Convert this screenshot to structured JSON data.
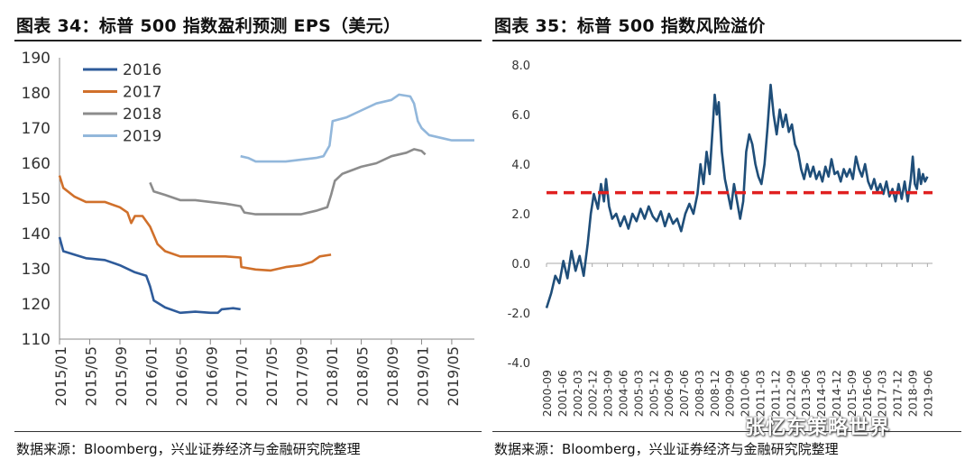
{
  "left": {
    "title": "图表 34：标普 500 指数盈利预测 EPS（美元）",
    "source": "数据来源：Bloomberg，兴业证券经济与金融研究院整理",
    "chart_data": {
      "type": "line",
      "title": "标普 500 指数盈利预测 EPS（美元）",
      "ylim": [
        110,
        190
      ],
      "yticks": [
        110,
        120,
        130,
        140,
        150,
        160,
        170,
        180,
        190
      ],
      "xlim": [
        0,
        55
      ],
      "xticks": [
        {
          "x": 0,
          "label": "2015/01"
        },
        {
          "x": 4,
          "label": "2015/05"
        },
        {
          "x": 8,
          "label": "2015/09"
        },
        {
          "x": 12,
          "label": "2016/01"
        },
        {
          "x": 16,
          "label": "2016/05"
        },
        {
          "x": 20,
          "label": "2016/09"
        },
        {
          "x": 24,
          "label": "2017/01"
        },
        {
          "x": 28,
          "label": "2017/05"
        },
        {
          "x": 32,
          "label": "2017/09"
        },
        {
          "x": 36,
          "label": "2018/01"
        },
        {
          "x": 40,
          "label": "2018/05"
        },
        {
          "x": 44,
          "label": "2018/09"
        },
        {
          "x": 48,
          "label": "2019/01"
        },
        {
          "x": 52,
          "label": "2019/05"
        }
      ],
      "series": [
        {
          "name": "2016",
          "color": "#2E5B9A",
          "points": [
            [
              0,
              139
            ],
            [
              0.5,
              135
            ],
            [
              2,
              134
            ],
            [
              3.5,
              133
            ],
            [
              6,
              132.5
            ],
            [
              8,
              131
            ],
            [
              10,
              129
            ],
            [
              11.5,
              128
            ],
            [
              12,
              125
            ],
            [
              12.5,
              121
            ],
            [
              14,
              119
            ],
            [
              16,
              117.5
            ],
            [
              18,
              117.8
            ],
            [
              20,
              117.5
            ],
            [
              21,
              117.5
            ],
            [
              21.5,
              118.5
            ],
            [
              23,
              118.8
            ],
            [
              24,
              118.5
            ]
          ]
        },
        {
          "name": "2017",
          "color": "#D0702B",
          "points": [
            [
              0,
              156.5
            ],
            [
              0.5,
              153
            ],
            [
              2,
              150.5
            ],
            [
              3.5,
              149
            ],
            [
              6,
              149
            ],
            [
              8,
              147.5
            ],
            [
              9,
              146
            ],
            [
              9.5,
              143
            ],
            [
              10,
              145
            ],
            [
              11,
              145
            ],
            [
              12,
              142
            ],
            [
              13,
              137
            ],
            [
              14,
              135
            ],
            [
              16,
              133.5
            ],
            [
              18,
              133.5
            ],
            [
              20,
              133.5
            ],
            [
              22,
              133.5
            ],
            [
              24,
              133.2
            ],
            [
              24.1,
              130.5
            ],
            [
              26,
              129.8
            ],
            [
              28,
              129.5
            ],
            [
              30,
              130.5
            ],
            [
              32,
              131
            ],
            [
              33.5,
              132
            ],
            [
              34.5,
              133.5
            ],
            [
              36,
              134
            ]
          ]
        },
        {
          "name": "2018",
          "color": "#8C8C8C",
          "points": [
            [
              12,
              154.5
            ],
            [
              12.5,
              152
            ],
            [
              14,
              151
            ],
            [
              16,
              149.5
            ],
            [
              18,
              149.5
            ],
            [
              20,
              149
            ],
            [
              22,
              148.5
            ],
            [
              24,
              147.8
            ],
            [
              24.5,
              146
            ],
            [
              26,
              145.5
            ],
            [
              28,
              145.5
            ],
            [
              30,
              145.5
            ],
            [
              32,
              145.5
            ],
            [
              34,
              146.5
            ],
            [
              35.5,
              147.5
            ],
            [
              36,
              151
            ],
            [
              36.5,
              155
            ],
            [
              37.5,
              157
            ],
            [
              40,
              159
            ],
            [
              42,
              160
            ],
            [
              44,
              162
            ],
            [
              46,
              163
            ],
            [
              47,
              164
            ],
            [
              48,
              163.5
            ],
            [
              48.5,
              162.5
            ]
          ]
        },
        {
          "name": "2019",
          "color": "#92B7DB",
          "points": [
            [
              24,
              162
            ],
            [
              25,
              161.5
            ],
            [
              26,
              160.5
            ],
            [
              28,
              160.5
            ],
            [
              30,
              160.5
            ],
            [
              32,
              161
            ],
            [
              34,
              161.5
            ],
            [
              35,
              162
            ],
            [
              35.8,
              165
            ],
            [
              36.2,
              172
            ],
            [
              38,
              173
            ],
            [
              40,
              175
            ],
            [
              42,
              177
            ],
            [
              44,
              178
            ],
            [
              45,
              179.5
            ],
            [
              46.5,
              179
            ],
            [
              47,
              177
            ],
            [
              47.5,
              172
            ],
            [
              48,
              170
            ],
            [
              49,
              168
            ],
            [
              51,
              167
            ],
            [
              52,
              166.5
            ],
            [
              53,
              166.5
            ],
            [
              54,
              166.5
            ],
            [
              55,
              166.5
            ]
          ]
        }
      ],
      "legend": {
        "position": "top-left"
      }
    }
  },
  "right": {
    "title": "图表 35：标普 500 指数风险溢价",
    "source": "数据来源：Bloomberg，兴业证券经济与金融研究院整理",
    "chart_data": {
      "type": "line",
      "title": "标普 500 指数风险溢价",
      "ylim": [
        -4,
        8
      ],
      "yticks": [
        {
          "v": -4,
          "label": "-4.0"
        },
        {
          "v": -2,
          "label": "-2.0"
        },
        {
          "v": 0,
          "label": "0.0"
        },
        {
          "v": 2,
          "label": "2.0"
        },
        {
          "v": 4,
          "label": "4.0"
        },
        {
          "v": 6,
          "label": "6.0"
        },
        {
          "v": 8,
          "label": "8.0"
        }
      ],
      "xlim": [
        2000.67,
        2019.67
      ],
      "xticks": [
        {
          "x": 2000.67,
          "label": "2000-09"
        },
        {
          "x": 2001.42,
          "label": "2001-06"
        },
        {
          "x": 2002.17,
          "label": "2002-03"
        },
        {
          "x": 2002.92,
          "label": "2002-12"
        },
        {
          "x": 2003.67,
          "label": "2003-09"
        },
        {
          "x": 2004.42,
          "label": "2004-06"
        },
        {
          "x": 2005.17,
          "label": "2005-03"
        },
        {
          "x": 2005.92,
          "label": "2005-12"
        },
        {
          "x": 2006.67,
          "label": "2006-09"
        },
        {
          "x": 2007.42,
          "label": "2007-06"
        },
        {
          "x": 2008.17,
          "label": "2008-03"
        },
        {
          "x": 2008.92,
          "label": "2008-12"
        },
        {
          "x": 2009.67,
          "label": "2009-09"
        },
        {
          "x": 2010.42,
          "label": "2010-06"
        },
        {
          "x": 2011.17,
          "label": "2011-03"
        },
        {
          "x": 2011.92,
          "label": "2011-12"
        },
        {
          "x": 2012.67,
          "label": "2012-09"
        },
        {
          "x": 2013.42,
          "label": "2013-06"
        },
        {
          "x": 2014.17,
          "label": "2014-03"
        },
        {
          "x": 2014.92,
          "label": "2014-12"
        },
        {
          "x": 2015.67,
          "label": "2015-09"
        },
        {
          "x": 2016.42,
          "label": "2016-06"
        },
        {
          "x": 2017.17,
          "label": "2017-03"
        },
        {
          "x": 2017.92,
          "label": "2017-12"
        },
        {
          "x": 2018.67,
          "label": "2018-09"
        },
        {
          "x": 2019.42,
          "label": "2019-06"
        }
      ],
      "series": [
        {
          "name": "风险溢价",
          "color": "#1F4E79",
          "points": [
            [
              2000.67,
              -1.8
            ],
            [
              2000.9,
              -1.2
            ],
            [
              2001.1,
              -0.5
            ],
            [
              2001.3,
              -0.8
            ],
            [
              2001.5,
              0.1
            ],
            [
              2001.7,
              -0.6
            ],
            [
              2001.9,
              0.5
            ],
            [
              2002.1,
              -0.3
            ],
            [
              2002.3,
              0.3
            ],
            [
              2002.5,
              -0.5
            ],
            [
              2002.7,
              0.8
            ],
            [
              2002.85,
              2.0
            ],
            [
              2003.0,
              2.8
            ],
            [
              2003.2,
              2.2
            ],
            [
              2003.35,
              3.2
            ],
            [
              2003.5,
              2.5
            ],
            [
              2003.6,
              3.4
            ],
            [
              2003.75,
              2.3
            ],
            [
              2003.9,
              1.8
            ],
            [
              2004.1,
              2.0
            ],
            [
              2004.3,
              1.5
            ],
            [
              2004.5,
              1.9
            ],
            [
              2004.7,
              1.4
            ],
            [
              2004.9,
              2.0
            ],
            [
              2005.1,
              1.7
            ],
            [
              2005.3,
              2.2
            ],
            [
              2005.5,
              1.8
            ],
            [
              2005.7,
              2.3
            ],
            [
              2005.9,
              1.9
            ],
            [
              2006.1,
              1.7
            ],
            [
              2006.3,
              2.1
            ],
            [
              2006.5,
              1.5
            ],
            [
              2006.7,
              2.0
            ],
            [
              2006.9,
              1.6
            ],
            [
              2007.1,
              1.8
            ],
            [
              2007.3,
              1.3
            ],
            [
              2007.5,
              2.0
            ],
            [
              2007.7,
              2.4
            ],
            [
              2007.9,
              2.0
            ],
            [
              2008.1,
              2.8
            ],
            [
              2008.25,
              4.0
            ],
            [
              2008.4,
              3.2
            ],
            [
              2008.55,
              4.5
            ],
            [
              2008.7,
              3.6
            ],
            [
              2008.85,
              5.5
            ],
            [
              2008.95,
              6.8
            ],
            [
              2009.05,
              6.0
            ],
            [
              2009.15,
              6.5
            ],
            [
              2009.3,
              4.5
            ],
            [
              2009.45,
              3.4
            ],
            [
              2009.6,
              2.8
            ],
            [
              2009.75,
              2.2
            ],
            [
              2009.9,
              3.2
            ],
            [
              2010.05,
              2.5
            ],
            [
              2010.2,
              1.8
            ],
            [
              2010.35,
              2.5
            ],
            [
              2010.5,
              4.5
            ],
            [
              2010.65,
              5.2
            ],
            [
              2010.8,
              4.8
            ],
            [
              2010.95,
              4.0
            ],
            [
              2011.1,
              3.5
            ],
            [
              2011.25,
              3.2
            ],
            [
              2011.4,
              4.0
            ],
            [
              2011.55,
              5.5
            ],
            [
              2011.7,
              7.2
            ],
            [
              2011.85,
              6.0
            ],
            [
              2012.0,
              5.2
            ],
            [
              2012.15,
              6.2
            ],
            [
              2012.3,
              5.5
            ],
            [
              2012.45,
              6.0
            ],
            [
              2012.6,
              5.3
            ],
            [
              2012.75,
              5.6
            ],
            [
              2012.9,
              4.8
            ],
            [
              2013.05,
              4.5
            ],
            [
              2013.2,
              3.8
            ],
            [
              2013.35,
              3.4
            ],
            [
              2013.5,
              4.0
            ],
            [
              2013.65,
              3.5
            ],
            [
              2013.8,
              3.9
            ],
            [
              2013.95,
              3.4
            ],
            [
              2014.1,
              3.7
            ],
            [
              2014.25,
              3.3
            ],
            [
              2014.4,
              3.9
            ],
            [
              2014.55,
              3.5
            ],
            [
              2014.7,
              4.2
            ],
            [
              2014.85,
              3.6
            ],
            [
              2015.0,
              3.7
            ],
            [
              2015.15,
              3.3
            ],
            [
              2015.3,
              3.8
            ],
            [
              2015.45,
              3.5
            ],
            [
              2015.6,
              3.8
            ],
            [
              2015.75,
              3.4
            ],
            [
              2015.9,
              4.3
            ],
            [
              2016.05,
              3.8
            ],
            [
              2016.2,
              3.5
            ],
            [
              2016.35,
              4.0
            ],
            [
              2016.5,
              3.3
            ],
            [
              2016.65,
              3.0
            ],
            [
              2016.8,
              3.4
            ],
            [
              2016.95,
              2.9
            ],
            [
              2017.1,
              3.2
            ],
            [
              2017.25,
              2.8
            ],
            [
              2017.4,
              3.3
            ],
            [
              2017.55,
              2.7
            ],
            [
              2017.7,
              3.0
            ],
            [
              2017.85,
              2.5
            ],
            [
              2018.0,
              3.2
            ],
            [
              2018.15,
              2.6
            ],
            [
              2018.3,
              3.3
            ],
            [
              2018.45,
              2.5
            ],
            [
              2018.6,
              3.4
            ],
            [
              2018.7,
              4.3
            ],
            [
              2018.8,
              3.2
            ],
            [
              2018.9,
              3.0
            ],
            [
              2019.0,
              3.8
            ],
            [
              2019.1,
              3.2
            ],
            [
              2019.2,
              3.6
            ],
            [
              2019.3,
              3.3
            ],
            [
              2019.42,
              3.5
            ]
          ]
        }
      ],
      "reference_line": {
        "value": 2.85,
        "color": "#E02020",
        "style": "dashed"
      }
    }
  },
  "watermark": "张忆东策略世界"
}
